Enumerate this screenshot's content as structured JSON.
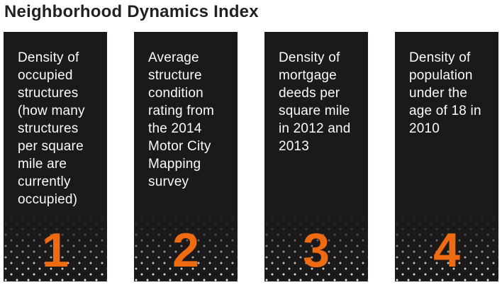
{
  "title": "Neighborhood Dynamics Index",
  "colors": {
    "accent": "#ee6b11",
    "card_background": "#1b191a",
    "title_text": "#242021",
    "card_text": "#fbfbfb"
  },
  "cards": [
    {
      "number": "1",
      "text": "Density of\noccupied\nstructures\n(how many\nstructures\nper square\nmile are\ncurrently\noccupied)"
    },
    {
      "number": "2",
      "text": "Average\nstructure\ncondition\nrating from\nthe 2014\nMotor City\nMapping\nsurvey"
    },
    {
      "number": "3",
      "text": "Density of\nmortgage\ndeeds per\nsquare mile\nin 2012 and\n2013"
    },
    {
      "number": "4",
      "text": "Density of\npopulation\nunder the\nage of 18 in\n2010"
    }
  ]
}
